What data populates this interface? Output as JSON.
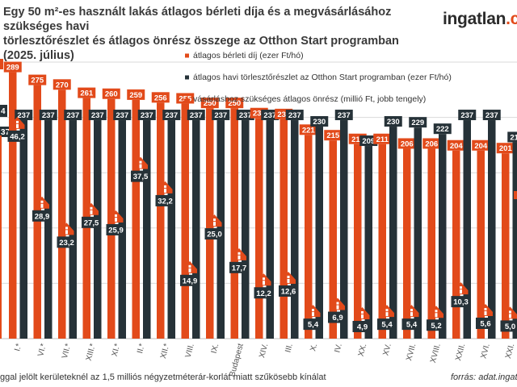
{
  "header": {
    "title_line1": "Egy 50 m²-es használt lakás átlagos bérleti díja és a megvásárlásához szükséges havi",
    "title_line2": "törlesztőrészlet és átlagos önrész összege az Otthon Start programban (2025. július)",
    "logo_main": "ingatlan",
    "logo_suffix": ".c"
  },
  "footer": {
    "footnote": "ggal jelölt kerületeknél az 1,5 milliós négyzetméterár-korlát miatt szűkösebb kínálat",
    "source": "forrás: adat.ingatl"
  },
  "colors": {
    "rent": "#e24a1a",
    "installment": "#263238",
    "downpayment": "#e24a1a",
    "grid": "#d9d9d9"
  },
  "chart_data": {
    "type": "bar",
    "categories": [
      "I.*",
      "VI.*",
      "VII.*",
      "XIII.*",
      "XI.*",
      "II.*",
      "XII.*",
      "VIII.",
      "IX.",
      "Budapest",
      "XIV.",
      "III.",
      "X.",
      "IV.",
      "XX.",
      "XV.",
      "XVII.",
      "XVIII.",
      "XXII.",
      "XVI.",
      "XXI.",
      "XIX.",
      "XX"
    ],
    "series": [
      {
        "name": "átlagos bérleti díj (ezer Ft/hó)",
        "type": "bar",
        "axis": "left",
        "values": [
          289,
          275,
          270,
          261,
          260,
          259,
          256,
          255,
          250,
          250,
          239,
          238,
          221,
          215,
          211,
          211,
          206,
          206,
          204,
          204,
          201,
          196,
          null
        ]
      },
      {
        "name": "átlagos havi törlesztőrészlet az Otthon Start programban (ezer Ft/hó)",
        "type": "bar",
        "axis": "left",
        "values": [
          237,
          237,
          237,
          237,
          237,
          237,
          237,
          237,
          237,
          237,
          237,
          237,
          230,
          237,
          209,
          230,
          229,
          222,
          237,
          237,
          213,
          224,
          null
        ]
      },
      {
        "name": "vásárláshoz szükséges átlagos önrész (millió Ft, jobb tengely)",
        "type": "marker",
        "axis": "right",
        "values": [
          46.2,
          28.9,
          23.2,
          27.5,
          25.9,
          37.5,
          32.2,
          14.9,
          25.0,
          17.7,
          12.2,
          12.6,
          5.4,
          6.9,
          4.9,
          5.4,
          5.4,
          5.2,
          10.3,
          5.6,
          5.0,
          5.3,
          null
        ]
      }
    ],
    "value_labels": {
      "rent": [
        "289",
        "275",
        "270",
        "261",
        "260",
        "259",
        "256",
        "255",
        "250",
        "250",
        "239",
        "238",
        "221",
        "215",
        "211",
        "211",
        "206",
        "206",
        "204",
        "204",
        "201",
        "196",
        ""
      ],
      "installment": [
        "237",
        "237",
        "237",
        "237",
        "237",
        "237",
        "237",
        "237",
        "237",
        "237",
        "237",
        "237",
        "230",
        "237",
        "209",
        "230",
        "229",
        "222",
        "237",
        "237",
        "213",
        "224",
        ""
      ],
      "downpayment": [
        "46,2",
        "28,9",
        "23,2",
        "27,5",
        "25,9",
        "37,5",
        "32,2",
        "14,9",
        "25,0",
        "17,7",
        "12,2",
        "12,6",
        "5,4",
        "6,9",
        "4,9",
        "5,4",
        "5,4",
        "5,2",
        "10,3",
        "5,6",
        "5,0",
        "5,3",
        ""
      ]
    },
    "partial_left_labels": [
      "4",
      "37"
    ],
    "ylim_left": [
      0,
      300
    ],
    "ylim_right": [
      0,
      60
    ],
    "grid": true,
    "legend_position": "top-right"
  }
}
